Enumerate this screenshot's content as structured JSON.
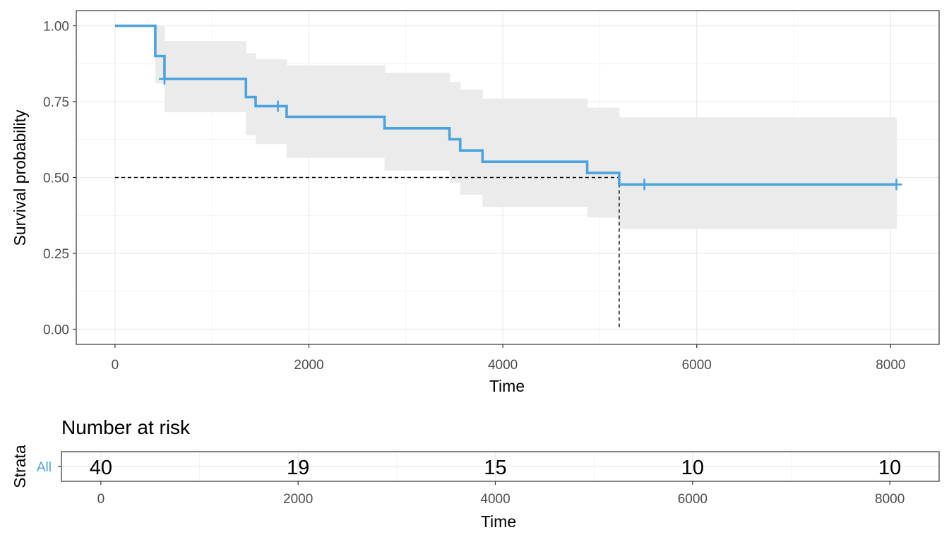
{
  "colors": {
    "curve": "#4aa3df",
    "confidence_band": "#ebebeb",
    "grid_major": "#ebebeb",
    "grid_minor": "#f4f4f4",
    "panel_border": "#333333",
    "median_line": "#000000"
  },
  "chart_data": [
    {
      "type": "line",
      "subtype": "kaplan-meier-step",
      "xlabel": "Time",
      "ylabel": "Survival probability",
      "xlim": [
        -400,
        8500
      ],
      "ylim": [
        -0.05,
        1.05
      ],
      "x_ticks": [
        0,
        2000,
        4000,
        6000,
        8000
      ],
      "x_tick_labels": [
        "0",
        "2000",
        "4000",
        "6000",
        "8000"
      ],
      "y_ticks": [
        0,
        0.25,
        0.5,
        0.75,
        1.0
      ],
      "y_tick_labels": [
        "0.00",
        "0.25",
        "0.50",
        "0.75",
        "1.00"
      ],
      "grid": true,
      "series": [
        {
          "steps": [
            {
              "x": 0,
              "y": 1.0
            },
            {
              "x": 415,
              "y": 0.9
            },
            {
              "x": 510,
              "y": 0.825
            },
            {
              "x": 1350,
              "y": 0.765
            },
            {
              "x": 1450,
              "y": 0.735
            },
            {
              "x": 1770,
              "y": 0.7
            },
            {
              "x": 2780,
              "y": 0.662
            },
            {
              "x": 3450,
              "y": 0.626
            },
            {
              "x": 3560,
              "y": 0.589
            },
            {
              "x": 3790,
              "y": 0.552
            },
            {
              "x": 4870,
              "y": 0.515
            },
            {
              "x": 5200,
              "y": 0.477
            }
          ],
          "end_x": 8060,
          "censor_points": [
            {
              "x": 510,
              "y": 0.825
            },
            {
              "x": 1680,
              "y": 0.735
            },
            {
              "x": 5460,
              "y": 0.477
            },
            {
              "x": 8060,
              "y": 0.477
            }
          ],
          "confidence_band": [
            {
              "x0": 415,
              "x1": 510,
              "lower": 0.81,
              "upper": 1.0
            },
            {
              "x0": 510,
              "x1": 1350,
              "lower": 0.715,
              "upper": 0.95
            },
            {
              "x0": 1350,
              "x1": 1450,
              "lower": 0.64,
              "upper": 0.91
            },
            {
              "x0": 1450,
              "x1": 1770,
              "lower": 0.61,
              "upper": 0.89
            },
            {
              "x0": 1770,
              "x1": 2780,
              "lower": 0.565,
              "upper": 0.87
            },
            {
              "x0": 2780,
              "x1": 3450,
              "lower": 0.523,
              "upper": 0.845
            },
            {
              "x0": 3450,
              "x1": 3560,
              "lower": 0.483,
              "upper": 0.815
            },
            {
              "x0": 3560,
              "x1": 3790,
              "lower": 0.443,
              "upper": 0.79
            },
            {
              "x0": 3790,
              "x1": 4870,
              "lower": 0.403,
              "upper": 0.76
            },
            {
              "x0": 4870,
              "x1": 5200,
              "lower": 0.368,
              "upper": 0.73
            },
            {
              "x0": 5200,
              "x1": 8060,
              "lower": 0.33,
              "upper": 0.698
            }
          ]
        }
      ],
      "median_survival": {
        "x": 5200,
        "y": 0.5
      }
    },
    {
      "type": "table",
      "title": "Number at risk",
      "xlabel": "Time",
      "ylabel": "Strata",
      "xlim": [
        -400,
        8500
      ],
      "x_ticks": [
        0,
        2000,
        4000,
        6000,
        8000
      ],
      "x_tick_labels": [
        "0",
        "2000",
        "4000",
        "6000",
        "8000"
      ],
      "strata": [
        "All"
      ],
      "times": [
        0,
        2000,
        4000,
        6000,
        8000
      ],
      "values": [
        40,
        19,
        15,
        10,
        10
      ]
    }
  ]
}
